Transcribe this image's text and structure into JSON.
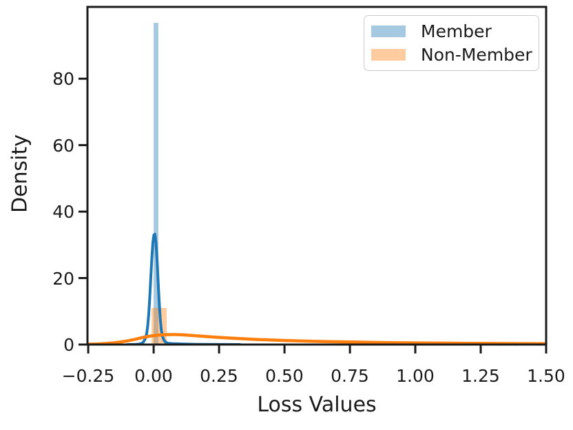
{
  "chart_data": {
    "type": "area",
    "subtype": "kde_with_histogram",
    "title": "",
    "xlabel": "Loss Values",
    "ylabel": "Density",
    "xlim": [
      -0.253,
      1.5
    ],
    "ylim": [
      0,
      101.6
    ],
    "xticks": [
      -0.25,
      0.0,
      0.25,
      0.5,
      0.75,
      1.0,
      1.25,
      1.5
    ],
    "xtick_labels": [
      "−0.25",
      "0.00",
      "0.25",
      "0.50",
      "0.75",
      "1.00",
      "1.25",
      "1.50"
    ],
    "yticks": [
      0,
      20,
      40,
      60,
      80
    ],
    "ytick_labels": [
      "0",
      "20",
      "40",
      "60",
      "80"
    ],
    "grid": false,
    "legend_position": "upper right",
    "axis_color": "#1a1a1a",
    "text_color": "#1a1a1a",
    "legend_border_color": "#cccccc",
    "series": [
      {
        "name": "Member",
        "line_color": "#1f77b4",
        "fill_color": "rgba(31,119,180,0.4)",
        "line_width": 4,
        "bars": [
          {
            "x0": 0.0,
            "x1": 0.018,
            "height": 96.8
          }
        ],
        "kde": [
          [
            -0.1,
            0.0
          ],
          [
            -0.07,
            0.05
          ],
          [
            -0.055,
            0.15
          ],
          [
            -0.045,
            0.4
          ],
          [
            -0.038,
            0.9
          ],
          [
            -0.032,
            1.8
          ],
          [
            -0.027,
            3.2
          ],
          [
            -0.023,
            5.5
          ],
          [
            -0.019,
            9.0
          ],
          [
            -0.015,
            14.0
          ],
          [
            -0.011,
            20.0
          ],
          [
            -0.007,
            26.0
          ],
          [
            -0.003,
            30.8
          ],
          [
            0.001,
            33.0
          ],
          [
            0.005,
            33.2
          ],
          [
            0.009,
            30.5
          ],
          [
            0.013,
            25.5
          ],
          [
            0.017,
            19.0
          ],
          [
            0.021,
            13.0
          ],
          [
            0.025,
            8.0
          ],
          [
            0.029,
            4.5
          ],
          [
            0.034,
            2.4
          ],
          [
            0.04,
            1.2
          ],
          [
            0.047,
            0.65
          ],
          [
            0.055,
            0.4
          ],
          [
            0.07,
            0.28
          ],
          [
            0.09,
            0.22
          ],
          [
            0.12,
            0.15
          ],
          [
            0.16,
            0.09
          ],
          [
            0.21,
            0.05
          ],
          [
            0.27,
            0.02
          ],
          [
            0.33,
            0.0
          ]
        ]
      },
      {
        "name": "Non-Member",
        "line_color": "#ff7f0e",
        "fill_color": "rgba(255,127,14,0.4)",
        "line_width": 4.5,
        "bars": [
          {
            "x0": -0.008,
            "x1": 0.05,
            "height": 11.0
          }
        ],
        "kde": [
          [
            -0.253,
            0.1
          ],
          [
            -0.22,
            0.17
          ],
          [
            -0.19,
            0.28
          ],
          [
            -0.16,
            0.45
          ],
          [
            -0.13,
            0.72
          ],
          [
            -0.1,
            1.1
          ],
          [
            -0.07,
            1.6
          ],
          [
            -0.04,
            2.15
          ],
          [
            -0.01,
            2.6
          ],
          [
            0.02,
            2.85
          ],
          [
            0.05,
            2.98
          ],
          [
            0.08,
            3.0
          ],
          [
            0.11,
            2.92
          ],
          [
            0.14,
            2.78
          ],
          [
            0.18,
            2.55
          ],
          [
            0.22,
            2.3
          ],
          [
            0.26,
            2.1
          ],
          [
            0.3,
            1.9
          ],
          [
            0.35,
            1.7
          ],
          [
            0.4,
            1.52
          ],
          [
            0.45,
            1.36
          ],
          [
            0.5,
            1.22
          ],
          [
            0.56,
            1.08
          ],
          [
            0.62,
            0.96
          ],
          [
            0.68,
            0.86
          ],
          [
            0.75,
            0.76
          ],
          [
            0.82,
            0.67
          ],
          [
            0.9,
            0.59
          ],
          [
            1.0,
            0.5
          ],
          [
            1.1,
            0.44
          ],
          [
            1.2,
            0.38
          ],
          [
            1.3,
            0.34
          ],
          [
            1.4,
            0.3
          ],
          [
            1.5,
            0.27
          ]
        ]
      }
    ]
  }
}
